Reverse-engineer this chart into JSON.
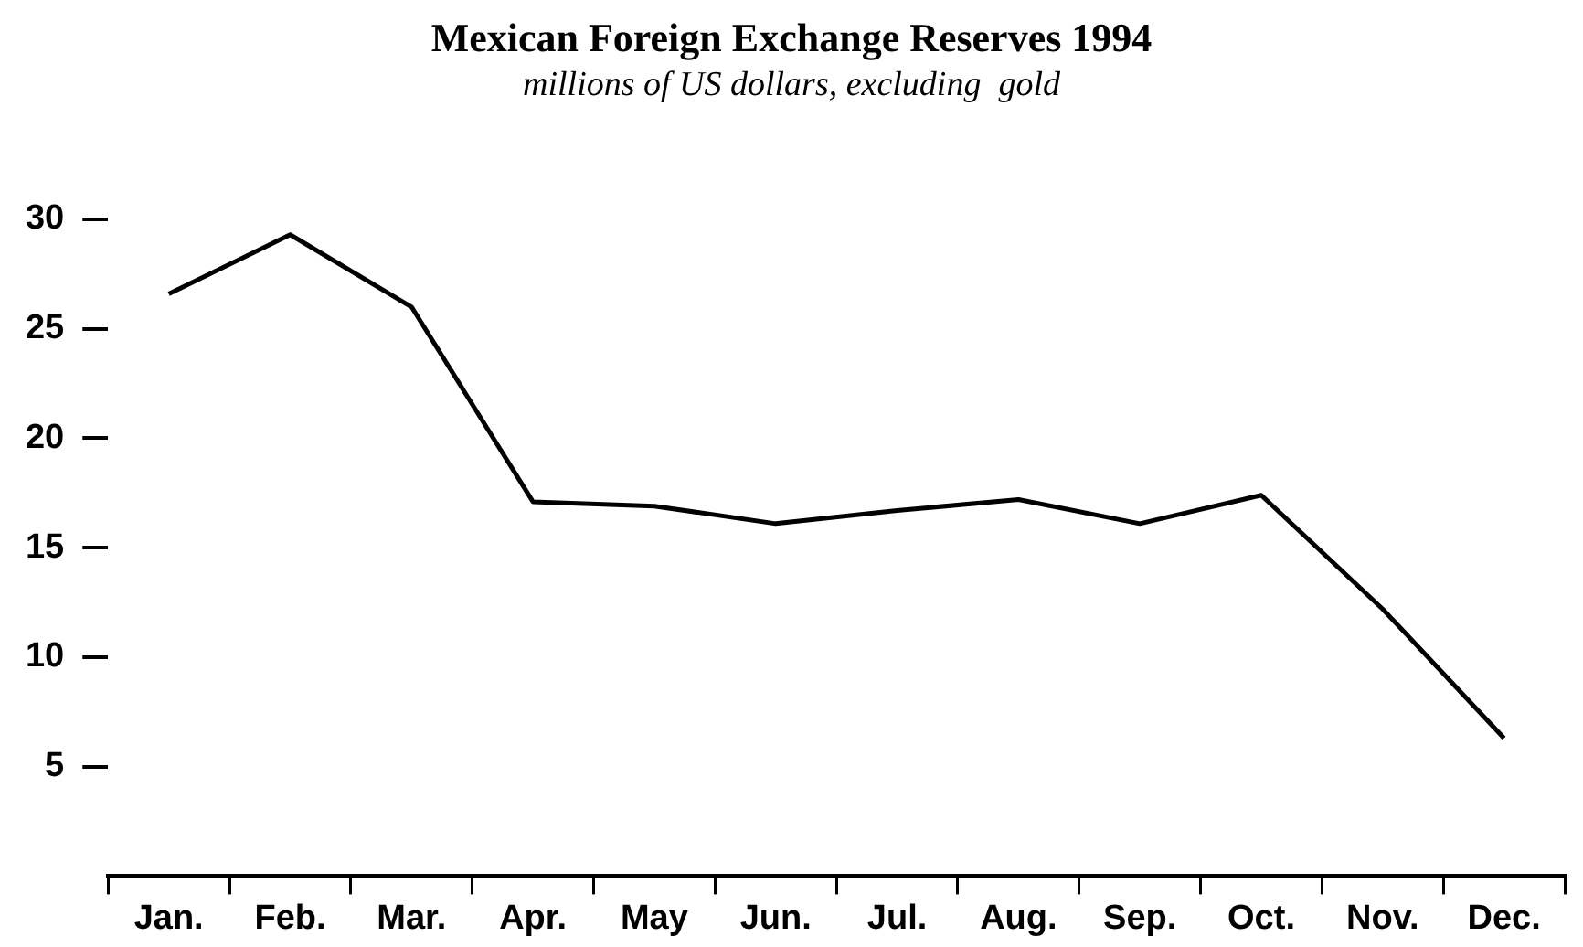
{
  "chart_data": {
    "type": "line",
    "title": "Mexican Foreign Exchange Reserves 1994",
    "subtitle": "millions of US dollars, excluding  gold",
    "categories": [
      "Jan.",
      "Feb.",
      "Mar.",
      "Apr.",
      "May",
      "Jun.",
      "Jul.",
      "Aug.",
      "Sep.",
      "Oct.",
      "Nov.",
      "Dec."
    ],
    "series": [
      {
        "color": "#000000",
        "values": [
          26.6,
          29.3,
          26.0,
          17.1,
          16.9,
          16.1,
          16.7,
          17.2,
          16.1,
          17.4,
          12.2,
          6.3
        ]
      }
    ],
    "ylim": [
      0,
      30
    ],
    "yticks": [
      5,
      10,
      15,
      20,
      25,
      30
    ],
    "grid": false,
    "legend": false,
    "marker": "none",
    "line_style": "solid"
  }
}
